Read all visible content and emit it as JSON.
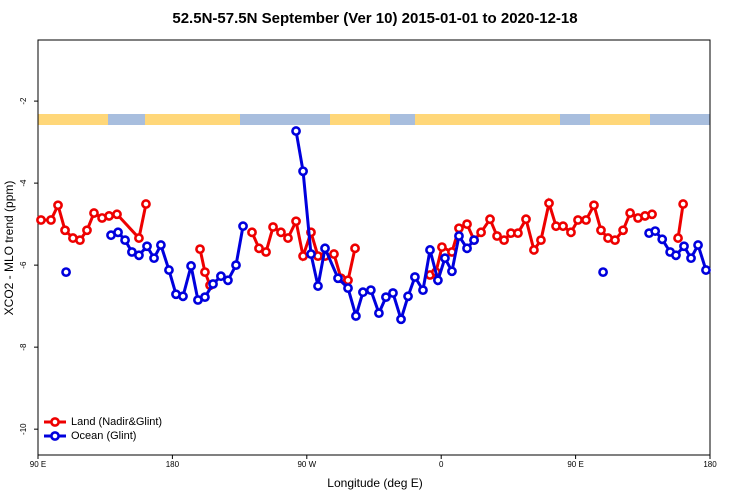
{
  "chart_data": {
    "type": "line",
    "title": "52.5N-57.5N September (Ver 10)   2015-01-01 to 2020-12-18",
    "x_label": "Longitude (deg E)",
    "y_label": "XCO2 - MLO trend (ppm)",
    "xlim": [
      90,
      540
    ],
    "xticks": [
      {
        "value": 90,
        "label": "90 E"
      },
      {
        "value": 180,
        "label": "180"
      },
      {
        "value": 270,
        "label": "90 W"
      },
      {
        "value": 360,
        "label": "0"
      },
      {
        "value": 450,
        "label": "90 E"
      },
      {
        "value": 540,
        "label": "180"
      }
    ],
    "ylim": [
      -10.63,
      -0.51
    ],
    "yticks": [
      -10,
      -8,
      -6,
      -4,
      -2
    ],
    "legend": "bottom-left",
    "series": [
      {
        "name": "Land (Nadir&Glint)",
        "color": "#ee0000",
        "x": [
          92.0,
          98.7,
          103.4,
          108.1,
          113.4,
          118.1,
          122.8,
          127.5,
          132.9,
          137.6,
          142.9,
          157.6,
          162.3,
          null,
          198.5,
          201.8,
          205.2,
          null,
          233.3,
          238.0,
          242.7,
          247.4,
          252.7,
          257.4,
          262.8,
          267.5,
          272.8,
          277.5,
          282.2,
          288.2,
          292.9,
          297.6,
          302.3,
          null,
          352.5,
          356.5,
          360.5,
          367.2,
          371.9,
          377.3,
          382.0,
          386.7,
          392.7,
          397.4,
          402.1,
          406.7,
          411.4,
          416.8,
          422.1,
          426.8,
          432.2,
          436.9,
          441.6,
          446.9,
          451.6,
          457.0,
          462.3,
          467.0,
          471.7,
          476.4,
          481.8,
          486.5,
          491.8,
          496.5,
          501.2,
          null,
          518.6,
          522.0
        ],
        "values": [
          -4.9,
          -4.9,
          -4.54,
          -5.15,
          -5.34,
          -5.39,
          -5.15,
          -4.73,
          -4.85,
          -4.8,
          -4.76,
          -5.34,
          -4.51,
          null,
          -5.61,
          -6.17,
          -6.49,
          null,
          -5.2,
          -5.59,
          -5.68,
          -5.07,
          -5.2,
          -5.34,
          -4.93,
          -5.78,
          -5.2,
          -5.78,
          -5.78,
          -5.73,
          -6.32,
          -6.37,
          -5.59,
          null,
          -6.24,
          -6.17,
          -5.56,
          -5.68,
          -5.1,
          -5.0,
          -5.39,
          -5.2,
          -4.88,
          -5.29,
          -5.39,
          -5.22,
          -5.22,
          -4.88,
          -5.63,
          -5.39,
          -4.49,
          -5.05,
          -5.05,
          -5.2,
          -4.9,
          -4.9,
          -4.54,
          -5.15,
          -5.34,
          -5.39,
          -5.15,
          -4.73,
          -4.85,
          -4.8,
          -4.76,
          null,
          -5.34,
          -4.51
        ]
      },
      {
        "name": "Ocean (Glint)",
        "color": "#0000dd",
        "x": [
          108.8,
          null,
          138.9,
          143.6,
          148.3,
          152.9,
          157.6,
          163.0,
          167.7,
          172.3,
          177.7,
          182.4,
          187.1,
          192.5,
          197.1,
          201.8,
          207.2,
          212.5,
          217.2,
          222.6,
          227.3,
          null,
          262.8,
          267.5,
          272.8,
          277.5,
          282.2,
          290.9,
          297.6,
          302.9,
          307.6,
          312.9,
          318.3,
          323.0,
          327.7,
          333.1,
          337.8,
          342.4,
          347.8,
          352.5,
          357.8,
          362.5,
          367.2,
          371.9,
          377.3,
          382.0,
          null,
          468.4,
          null,
          499.2,
          503.3,
          508.0,
          513.3,
          517.2,
          522.6,
          527.3,
          532.0,
          537.3
        ],
        "values": [
          -6.17,
          null,
          -5.27,
          -5.2,
          -5.39,
          -5.68,
          -5.76,
          -5.54,
          -5.83,
          -5.51,
          -6.12,
          -6.71,
          -6.76,
          -6.02,
          -6.85,
          -6.78,
          -6.46,
          -6.27,
          -6.37,
          -6.0,
          -5.05,
          null,
          -2.73,
          -3.71,
          -5.73,
          -6.51,
          -5.59,
          -6.32,
          -6.56,
          -7.24,
          -6.66,
          -6.61,
          -7.17,
          -6.78,
          -6.68,
          -7.32,
          -6.76,
          -6.29,
          -6.61,
          -5.63,
          -6.37,
          -5.83,
          -6.15,
          -5.29,
          -5.59,
          -5.39,
          null,
          -6.17,
          null,
          -5.22,
          -5.17,
          -5.37,
          -5.68,
          -5.76,
          -5.54,
          -5.83,
          -5.51,
          -6.12
        ]
      }
    ]
  }
}
